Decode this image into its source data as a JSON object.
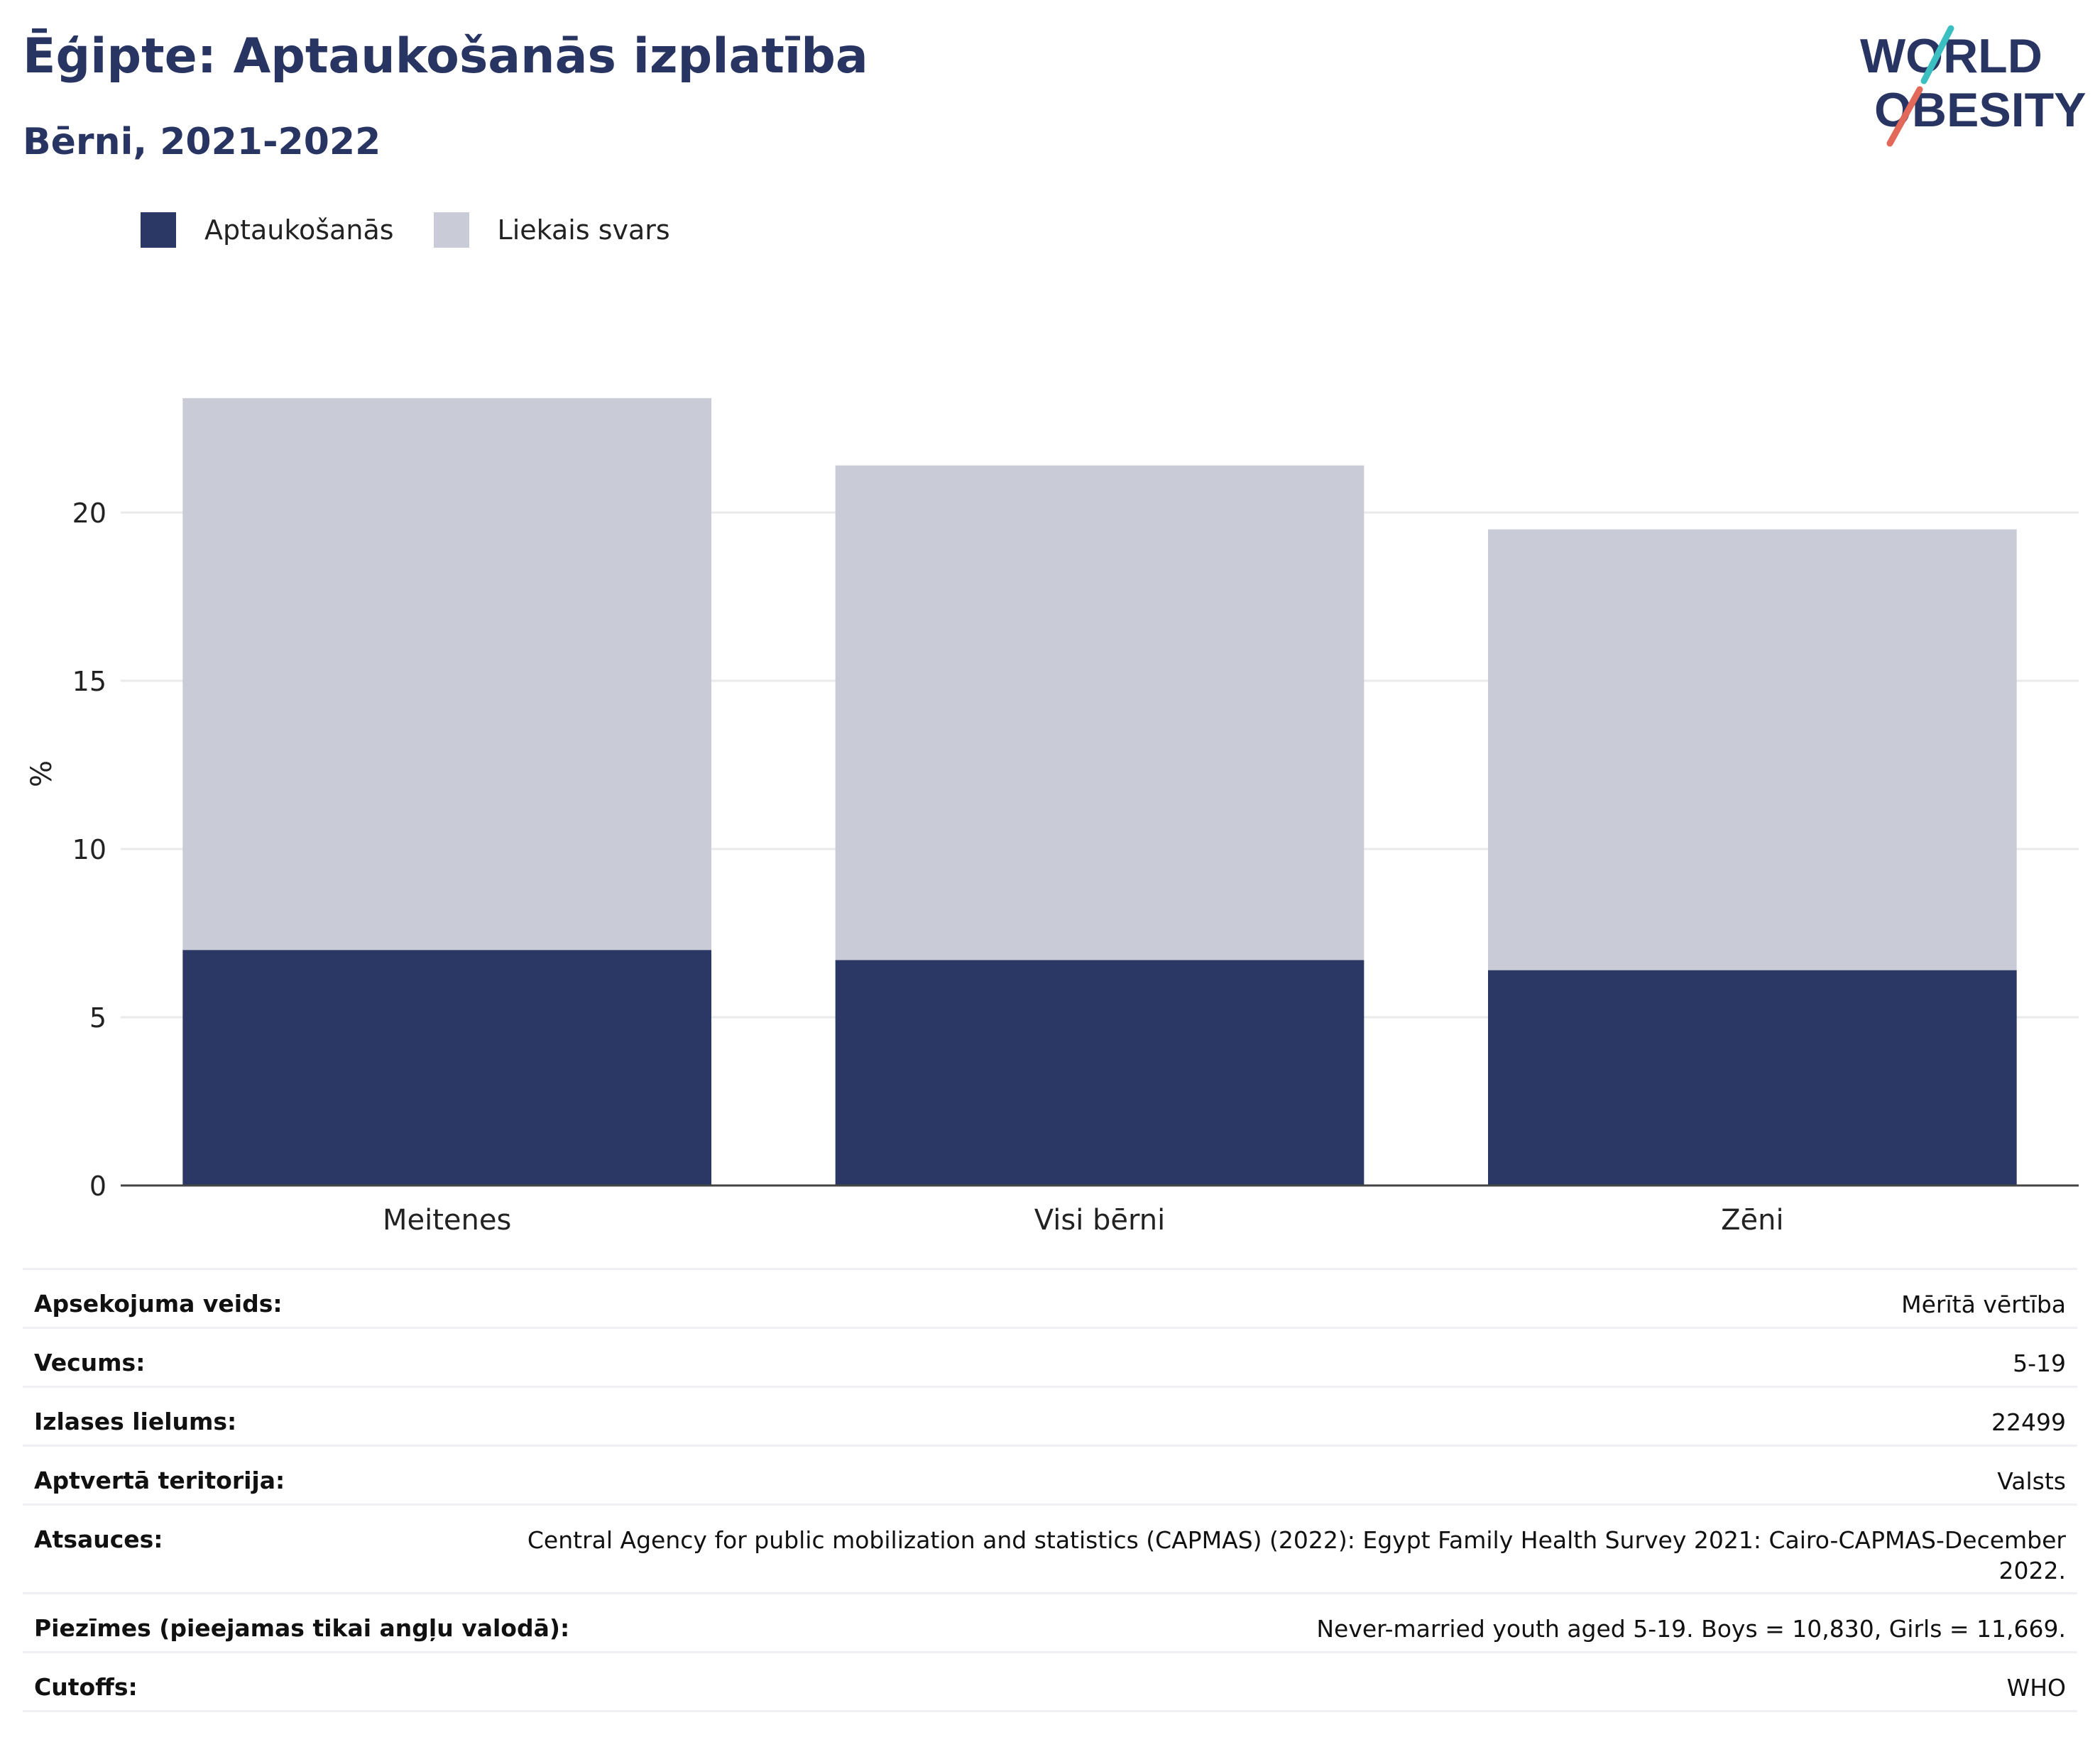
{
  "header": {
    "title": "Ēģipte: Aptaukošanās izplatība",
    "subtitle": "Bērni, 2021-2022"
  },
  "logo": {
    "line1": "WORLD",
    "line2": "OBESITY",
    "colors": {
      "text": "#283562",
      "slash_teal": "#3bbfc0",
      "slash_red": "#e2685a"
    }
  },
  "legend": [
    {
      "label": "Aptaukošanās",
      "color": "#2b3764"
    },
    {
      "label": "Liekais svars",
      "color": "#c9cbd7"
    }
  ],
  "chart_data": {
    "type": "bar",
    "stacked": true,
    "categories": [
      "Meitenes",
      "Visi bērni",
      "Zēni"
    ],
    "series": [
      {
        "name": "Aptaukošanās",
        "values": [
          7.0,
          6.7,
          6.4
        ],
        "color": "#2b3764"
      },
      {
        "name": "Liekais svars",
        "values": [
          16.4,
          14.7,
          13.1
        ],
        "color": "#c9cbd7"
      }
    ],
    "ylabel": "%",
    "xlabel": "",
    "ylim": [
      0,
      25
    ],
    "yticks": [
      0,
      5,
      10,
      15,
      20
    ],
    "grid": true,
    "legend_position": "top-left"
  },
  "meta": [
    {
      "label": "Apsekojuma veids:",
      "value": "Mērītā vērtība"
    },
    {
      "label": "Vecums:",
      "value": "5-19"
    },
    {
      "label": "Izlases lielums:",
      "value": "22499"
    },
    {
      "label": "Aptvertā teritorija:",
      "value": "Valsts"
    },
    {
      "label": "Atsauces:",
      "value": "Central Agency for public mobilization and statistics (CAPMAS) (2022): Egypt Family Health Survey 2021: Cairo-CAPMAS-December 2022."
    },
    {
      "label": "Piezīmes (pieejamas tikai angļu valodā):",
      "value": "Never-married youth aged 5-19. Boys = 10,830, Girls = 11,669."
    },
    {
      "label": "Cutoffs:",
      "value": "WHO"
    }
  ]
}
